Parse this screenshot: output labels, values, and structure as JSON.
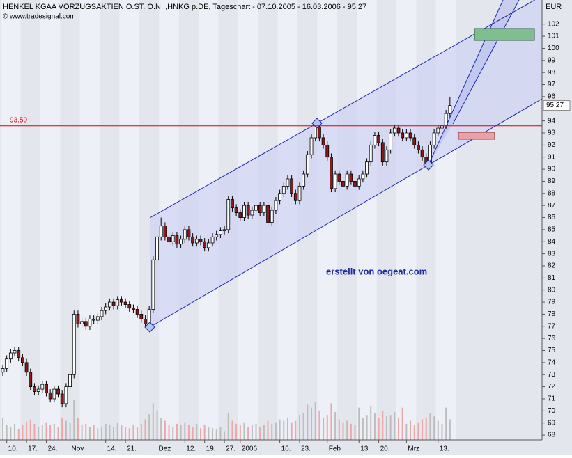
{
  "chart_data": {
    "type": "candlestick",
    "title": "HENKEL KGAA VORZUGSAKTIEN O.ST. O.N. ,HNKG p.DE, Tageschart - 07.10.2005 - 16.03.2006 - 95.27",
    "source": "© www.tradesignal.com",
    "y_unit": "EUR",
    "annotation": "erstellt von oegeat.com",
    "hline": {
      "value": 93.59,
      "color": "#e00000"
    },
    "colors": {
      "up": "#ffffff",
      "down": "#8b1a1a",
      "volume_up": "#bdbdbd",
      "volume_down": "#eaa8a8"
    },
    "ylim": [
      67.6,
      104
    ],
    "yticks": [
      68,
      69,
      70,
      71,
      72,
      73,
      74,
      75,
      76,
      77,
      78,
      79,
      80,
      81,
      82,
      83,
      84,
      85,
      86,
      87,
      88,
      89,
      90,
      91,
      92,
      93,
      94,
      95,
      96,
      97,
      98,
      99,
      100,
      101,
      102
    ],
    "categories": [
      null,
      "10.",
      null,
      null,
      null,
      null,
      "17.",
      null,
      null,
      null,
      null,
      "24.",
      null,
      null,
      null,
      null,
      null,
      "Nov",
      null,
      null,
      null,
      null,
      null,
      null,
      null,
      null,
      "14.",
      null,
      null,
      null,
      null,
      "21.",
      null,
      null,
      null,
      null,
      null,
      null,
      null,
      "Dez",
      null,
      null,
      null,
      null,
      null,
      null,
      "12.",
      null,
      null,
      null,
      null,
      "19.",
      null,
      null,
      null,
      null,
      "27.",
      null,
      null,
      null,
      "2006",
      null,
      null,
      null,
      null,
      null,
      null,
      null,
      null,
      null,
      "16.",
      null,
      null,
      null,
      null,
      "23.",
      null,
      null,
      null,
      null,
      null,
      null,
      "Feb",
      null,
      null,
      null,
      null,
      null,
      null,
      null,
      "13.",
      null,
      null,
      null,
      null,
      "20.",
      null,
      null,
      null,
      null,
      null,
      null,
      "Mrz",
      null,
      null,
      null,
      null,
      null,
      null,
      null,
      "13.",
      null,
      null,
      null
    ],
    "open": [
      73.2,
      73.5,
      74.3,
      74.8,
      75.0,
      74.4,
      74.0,
      73.2,
      72.0,
      71.6,
      71.8,
      72.2,
      71.5,
      71.0,
      71.8,
      71.4,
      70.6,
      72.0,
      73.0,
      78.0,
      77.2,
      77.4,
      77.0,
      77.6,
      77.5,
      77.8,
      78.3,
      78.6,
      79.0,
      78.7,
      79.2,
      79.0,
      78.8,
      78.5,
      78.4,
      78.0,
      77.6,
      77.2,
      78.4,
      82.5,
      84.4,
      85.3,
      84.4,
      84.0,
      84.5,
      83.8,
      84.2,
      85.0,
      84.4,
      83.9,
      84.2,
      84.0,
      83.5,
      83.9,
      84.4,
      84.6,
      84.9,
      85.0,
      87.5,
      86.8,
      86.4,
      86.0,
      87.0,
      86.2,
      86.6,
      87.0,
      86.4,
      87.0,
      85.6,
      86.6,
      87.4,
      88.0,
      88.6,
      89.2,
      88.0,
      87.4,
      88.6,
      89.6,
      91.2,
      92.6,
      93.5,
      92.6,
      92.0,
      91.0,
      88.4,
      89.6,
      89.0,
      88.6,
      89.6,
      89.0,
      88.6,
      89.2,
      89.6,
      90.6,
      92.0,
      92.8,
      92.2,
      90.6,
      91.6,
      93.0,
      93.4,
      93.0,
      92.6,
      93.0,
      92.6,
      92.0,
      91.6,
      91.0,
      90.4,
      92.0,
      93.0,
      93.4,
      93.6,
      94.6
    ],
    "high": [
      73.8,
      74.6,
      75.1,
      75.3,
      75.3,
      74.7,
      74.3,
      73.5,
      72.3,
      72.1,
      72.5,
      72.5,
      71.8,
      72.1,
      72.1,
      71.7,
      72.3,
      73.3,
      78.3,
      78.3,
      77.7,
      77.7,
      77.9,
      77.9,
      78.1,
      78.6,
      78.9,
      79.3,
      79.3,
      79.5,
      79.5,
      79.3,
      79.1,
      78.8,
      78.7,
      78.3,
      77.9,
      78.7,
      82.8,
      84.7,
      86.0,
      85.6,
      84.7,
      84.8,
      84.8,
      84.5,
      85.3,
      85.3,
      84.7,
      84.5,
      84.5,
      84.3,
      84.2,
      84.7,
      84.9,
      85.2,
      85.3,
      87.8,
      87.8,
      87.1,
      86.7,
      87.3,
      87.3,
      86.9,
      87.3,
      87.3,
      87.3,
      87.3,
      86.9,
      87.7,
      88.3,
      88.9,
      89.5,
      89.5,
      88.3,
      88.9,
      89.9,
      91.5,
      92.9,
      93.8,
      93.8,
      92.9,
      92.3,
      91.3,
      89.9,
      89.9,
      89.3,
      89.9,
      89.9,
      89.3,
      89.5,
      89.9,
      90.9,
      92.3,
      93.1,
      93.1,
      92.5,
      91.9,
      93.3,
      93.7,
      93.7,
      93.3,
      93.3,
      93.3,
      92.9,
      92.3,
      91.9,
      91.3,
      92.3,
      93.3,
      93.7,
      93.9,
      94.9,
      96.0
    ],
    "low": [
      72.9,
      73.2,
      74.0,
      74.5,
      74.1,
      73.7,
      72.9,
      71.7,
      71.3,
      71.3,
      71.5,
      71.2,
      70.7,
      70.7,
      71.1,
      70.3,
      70.3,
      71.7,
      72.7,
      76.9,
      76.9,
      76.7,
      76.7,
      77.2,
      77.2,
      77.5,
      78.0,
      78.3,
      78.4,
      78.4,
      78.7,
      78.5,
      78.2,
      78.1,
      77.7,
      77.3,
      76.9,
      76.9,
      78.1,
      82.2,
      84.1,
      84.1,
      83.7,
      83.7,
      83.5,
      83.5,
      83.9,
      84.1,
      83.6,
      83.6,
      83.7,
      83.2,
      83.2,
      83.6,
      84.1,
      84.3,
      84.6,
      84.7,
      86.5,
      86.1,
      85.7,
      85.7,
      85.9,
      85.9,
      86.3,
      86.1,
      86.1,
      85.3,
      85.3,
      86.3,
      87.1,
      87.7,
      88.3,
      87.7,
      87.1,
      87.1,
      88.3,
      89.3,
      90.9,
      92.3,
      92.3,
      91.7,
      90.7,
      88.1,
      88.1,
      88.7,
      88.3,
      88.3,
      88.7,
      88.3,
      88.3,
      88.9,
      89.3,
      90.3,
      91.7,
      91.9,
      90.3,
      90.3,
      91.3,
      92.7,
      92.7,
      92.3,
      92.3,
      92.3,
      91.7,
      91.3,
      90.7,
      90.1,
      90.1,
      91.7,
      92.7,
      93.1,
      93.3,
      94.3
    ],
    "close": [
      73.5,
      74.3,
      74.8,
      75.0,
      74.4,
      74.0,
      73.2,
      72.0,
      71.6,
      71.8,
      72.2,
      71.5,
      71.0,
      71.8,
      71.4,
      70.6,
      72.0,
      73.0,
      78.0,
      77.2,
      77.4,
      77.0,
      77.6,
      77.5,
      77.8,
      78.3,
      78.6,
      79.0,
      78.7,
      79.2,
      79.0,
      78.8,
      78.5,
      78.4,
      78.0,
      77.6,
      77.2,
      78.4,
      82.5,
      84.4,
      85.3,
      84.4,
      84.0,
      84.5,
      83.8,
      84.2,
      85.0,
      84.4,
      83.9,
      84.2,
      84.0,
      83.5,
      83.9,
      84.4,
      84.6,
      84.9,
      85.0,
      87.5,
      86.8,
      86.4,
      86.0,
      87.0,
      86.2,
      86.6,
      87.0,
      86.4,
      87.0,
      85.6,
      86.6,
      87.4,
      88.0,
      88.6,
      89.2,
      88.0,
      87.4,
      88.6,
      89.6,
      91.2,
      92.6,
      93.5,
      92.6,
      92.0,
      91.0,
      88.4,
      89.6,
      89.0,
      88.6,
      89.6,
      89.0,
      88.6,
      89.2,
      89.6,
      90.6,
      92.0,
      92.8,
      92.2,
      90.6,
      91.6,
      93.0,
      93.4,
      93.0,
      92.6,
      93.0,
      92.6,
      92.0,
      91.6,
      91.0,
      90.4,
      92.0,
      93.0,
      93.4,
      93.6,
      94.6,
      95.27
    ],
    "volume": [
      30,
      20,
      18,
      22,
      15,
      20,
      25,
      28,
      22,
      18,
      20,
      24,
      20,
      22,
      18,
      30,
      26,
      24,
      55,
      30,
      20,
      22,
      18,
      20,
      16,
      18,
      22,
      20,
      18,
      24,
      20,
      18,
      16,
      20,
      18,
      22,
      28,
      35,
      50,
      40,
      30,
      26,
      20,
      18,
      22,
      20,
      24,
      20,
      18,
      22,
      16,
      20,
      18,
      16,
      14,
      18,
      12,
      36,
      26,
      22,
      20,
      24,
      18,
      20,
      22,
      18,
      20,
      26,
      22,
      24,
      28,
      26,
      30,
      24,
      26,
      34,
      36,
      48,
      44,
      52,
      40,
      30,
      34,
      50,
      38,
      28,
      24,
      26,
      22,
      20,
      44,
      30,
      34,
      46,
      36,
      30,
      40,
      32,
      34,
      38,
      30,
      44,
      22,
      26,
      20,
      24,
      28,
      30,
      36,
      32,
      26,
      22,
      44,
      28
    ],
    "grid": false
  }
}
